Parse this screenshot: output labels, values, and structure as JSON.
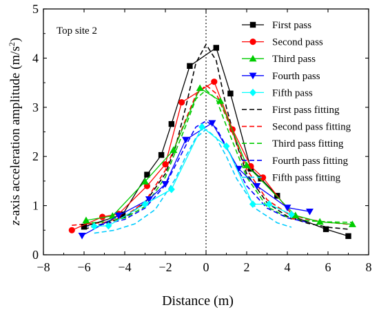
{
  "chart_data": {
    "type": "line",
    "annotation": "Top site 2",
    "xlabel": "Distance (m)",
    "ylabel": "z-axis acceleration amplitude (m/s²)",
    "ylabel_parts": {
      "main": "z-axis acceleration amplitude (m/s",
      "sup": "2",
      "close": ")"
    },
    "xlim": [
      -8,
      8
    ],
    "ylim": [
      0,
      5
    ],
    "xticks": [
      -8,
      -6,
      -4,
      -2,
      0,
      2,
      4,
      6,
      8
    ],
    "yticks": [
      0,
      1,
      2,
      3,
      4,
      5
    ],
    "xtick_labels": [
      "−8",
      "−6",
      "−4",
      "−2",
      "0",
      "2",
      "4",
      "6",
      "8"
    ],
    "ytick_labels": [
      "0",
      "1",
      "2",
      "3",
      "4",
      "5"
    ],
    "reference_line_x": 0,
    "grid": false,
    "legend_position": "top-right",
    "series": [
      {
        "name": "First pass",
        "kind": "measured",
        "color": "#000000",
        "marker": "square",
        "x": [
          -6.0,
          -4.1,
          -2.9,
          -2.2,
          -1.7,
          -0.8,
          0.5,
          1.2,
          2.2,
          2.7,
          3.5,
          4.3,
          5.9,
          7.0
        ],
        "y": [
          0.57,
          0.82,
          1.63,
          2.03,
          2.66,
          3.84,
          4.21,
          3.28,
          1.75,
          1.55,
          1.2,
          0.78,
          0.52,
          0.38
        ]
      },
      {
        "name": "Second pass",
        "kind": "measured",
        "color": "#ff0000",
        "marker": "circle",
        "x": [
          -6.6,
          -5.1,
          -4.3,
          -2.9,
          -2.0,
          -1.2,
          0.4,
          1.3,
          2.2,
          2.8,
          4.3
        ],
        "y": [
          0.5,
          0.77,
          0.83,
          1.4,
          1.84,
          3.1,
          3.52,
          2.55,
          1.8,
          1.57,
          0.78
        ]
      },
      {
        "name": "Third pass",
        "kind": "measured",
        "color": "#00cc00",
        "marker": "triangle-up",
        "x": [
          -5.9,
          -4.6,
          -3.0,
          -1.6,
          -0.3,
          0.7,
          2.0,
          4.4,
          5.6,
          7.2
        ],
        "y": [
          0.7,
          0.79,
          1.49,
          2.13,
          3.39,
          3.13,
          1.82,
          0.8,
          0.67,
          0.62
        ]
      },
      {
        "name": "Fourth pass",
        "kind": "measured",
        "color": "#0000ff",
        "marker": "triangle-down",
        "x": [
          -6.1,
          -4.3,
          -2.8,
          -2.0,
          -1.0,
          0.3,
          1.6,
          2.5,
          4.0,
          5.1
        ],
        "y": [
          0.39,
          0.8,
          1.13,
          1.44,
          2.34,
          2.68,
          1.75,
          1.4,
          0.96,
          0.88
        ]
      },
      {
        "name": "Fifth pass",
        "kind": "measured",
        "color": "#00ffff",
        "marker": "diamond",
        "x": [
          -5.5,
          -4.8,
          -3.0,
          -1.7,
          -0.2,
          1.0,
          2.3,
          3.1,
          4.2
        ],
        "y": [
          0.58,
          0.59,
          1.03,
          1.33,
          2.6,
          2.21,
          1.03,
          1.03,
          0.82
        ]
      },
      {
        "name": "First pass fitting",
        "kind": "fit",
        "color": "#000000",
        "x": [
          -6.0,
          -4.0,
          -3.0,
          -2.0,
          -1.5,
          -1.0,
          -0.5,
          0.0,
          0.5,
          1.0,
          1.5,
          2.0,
          3.0,
          4.0,
          5.0,
          6.0,
          7.0
        ],
        "y": [
          0.52,
          0.76,
          1.06,
          1.65,
          2.2,
          3.0,
          3.9,
          4.28,
          3.95,
          3.0,
          2.25,
          1.65,
          1.06,
          0.78,
          0.64,
          0.56,
          0.52
        ]
      },
      {
        "name": "Second pass fitting",
        "kind": "fit",
        "color": "#ff0000",
        "x": [
          -6.6,
          -5.0,
          -4.0,
          -3.0,
          -2.0,
          -1.0,
          -0.5,
          0.0,
          0.5,
          1.0,
          2.0,
          3.0,
          4.0,
          5.0,
          6.0,
          7.0
        ],
        "y": [
          0.6,
          0.66,
          0.78,
          1.08,
          1.72,
          2.75,
          3.25,
          3.45,
          3.28,
          2.8,
          1.74,
          1.12,
          0.84,
          0.72,
          0.66,
          0.62
        ]
      },
      {
        "name": "Third pass fitting",
        "kind": "fit",
        "color": "#00cc00",
        "x": [
          -6.0,
          -5.0,
          -4.0,
          -3.0,
          -2.0,
          -1.0,
          -0.5,
          0.0,
          0.5,
          1.0,
          2.0,
          3.0,
          4.0,
          5.0,
          6.0,
          7.2
        ],
        "y": [
          0.64,
          0.67,
          0.75,
          0.98,
          1.58,
          2.62,
          3.17,
          3.35,
          3.17,
          2.62,
          1.58,
          0.98,
          0.76,
          0.69,
          0.67,
          0.66
        ]
      },
      {
        "name": "Fourth pass fitting",
        "kind": "fit",
        "color": "#0000ff",
        "x": [
          -6.0,
          -5.0,
          -4.0,
          -3.0,
          -2.0,
          -1.0,
          -0.5,
          0.0,
          0.5,
          1.0,
          2.0,
          3.0,
          4.0,
          5.0
        ],
        "y": [
          0.58,
          0.62,
          0.72,
          0.95,
          1.42,
          2.22,
          2.6,
          2.72,
          2.58,
          2.2,
          1.4,
          0.95,
          0.75,
          0.66
        ]
      },
      {
        "name": "Fifth pass fitting",
        "kind": "fit",
        "color": "#00ccff",
        "x": [
          -5.5,
          -4.5,
          -3.5,
          -2.5,
          -1.5,
          -1.0,
          -0.5,
          0.0,
          0.5,
          1.0,
          1.5,
          2.5,
          3.5,
          4.2
        ],
        "y": [
          0.44,
          0.5,
          0.63,
          0.92,
          1.55,
          2.0,
          2.38,
          2.55,
          2.38,
          2.0,
          1.55,
          0.92,
          0.65,
          0.56
        ]
      }
    ]
  }
}
